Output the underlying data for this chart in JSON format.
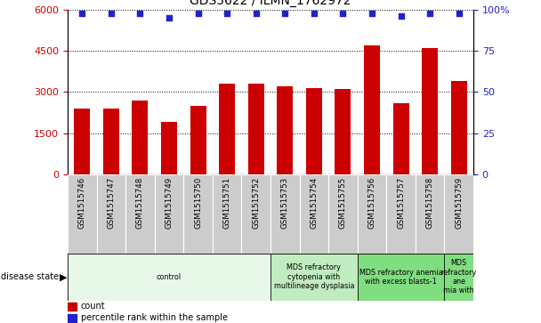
{
  "title": "GDS5622 / ILMN_1762972",
  "samples": [
    "GSM1515746",
    "GSM1515747",
    "GSM1515748",
    "GSM1515749",
    "GSM1515750",
    "GSM1515751",
    "GSM1515752",
    "GSM1515753",
    "GSM1515754",
    "GSM1515755",
    "GSM1515756",
    "GSM1515757",
    "GSM1515758",
    "GSM1515759"
  ],
  "counts": [
    2400,
    2400,
    2700,
    1900,
    2500,
    3300,
    3300,
    3200,
    3150,
    3100,
    4700,
    2600,
    4600,
    3400
  ],
  "percentile_ranks": [
    98,
    98,
    98,
    95,
    98,
    98,
    98,
    98,
    98,
    98,
    98,
    96,
    98,
    98
  ],
  "bar_color": "#cc0000",
  "dot_color": "#2222cc",
  "ylim_left": [
    0,
    6000
  ],
  "ylim_right": [
    0,
    100
  ],
  "yticks_left": [
    0,
    1500,
    3000,
    4500,
    6000
  ],
  "yticks_right": [
    0,
    25,
    50,
    75,
    100
  ],
  "disease_groups": [
    {
      "label": "control",
      "start": 0,
      "end": 7,
      "color": "#e8f8e8"
    },
    {
      "label": "MDS refractory\ncytopenia with\nmultilineage dysplasia",
      "start": 7,
      "end": 10,
      "color": "#c0ecc0"
    },
    {
      "label": "MDS refractory anemia\nwith excess blasts-1",
      "start": 10,
      "end": 13,
      "color": "#80dd80"
    },
    {
      "label": "MDS\nrefractory\nane\nmia with",
      "start": 13,
      "end": 14,
      "color": "#80dd80"
    }
  ],
  "background_color": "#ffffff",
  "tick_bg_color": "#cccccc"
}
